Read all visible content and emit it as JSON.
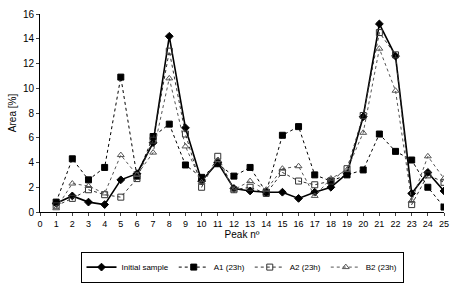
{
  "chart_data": {
    "type": "line",
    "x_label": "Peak nº",
    "y_label": "Area [%]",
    "x": [
      1,
      2,
      3,
      4,
      5,
      6,
      7,
      8,
      9,
      10,
      11,
      12,
      13,
      14,
      15,
      16,
      17,
      18,
      19,
      20,
      21,
      22,
      23,
      24,
      25
    ],
    "xlim": [
      0,
      25
    ],
    "xticks": [
      0,
      1,
      2,
      3,
      4,
      5,
      6,
      7,
      8,
      9,
      10,
      11,
      12,
      13,
      14,
      15,
      16,
      17,
      18,
      19,
      20,
      21,
      22,
      23,
      24,
      25
    ],
    "ylim": [
      0,
      16
    ],
    "yticks": [
      0,
      2,
      4,
      6,
      8,
      10,
      12,
      14,
      16
    ],
    "grid": false,
    "legend": "bottom",
    "series": [
      {
        "name": "Initial sample",
        "color": "#000000",
        "marker": "diamond",
        "line_style": "solid",
        "values": [
          0.7,
          1.3,
          0.8,
          0.6,
          2.6,
          3.1,
          5.6,
          14.2,
          6.8,
          2.5,
          4.0,
          1.9,
          1.7,
          1.6,
          1.6,
          1.1,
          1.6,
          2.0,
          3.1,
          7.7,
          15.2,
          12.6,
          1.5,
          3.2,
          1.7
        ]
      },
      {
        "name": "A1 (23h)",
        "color": "#000000",
        "marker": "square",
        "line_style": "dot",
        "values": [
          0.8,
          4.3,
          2.6,
          3.6,
          10.9,
          2.9,
          6.1,
          7.1,
          3.8,
          2.8,
          3.9,
          2.9,
          3.6,
          1.6,
          6.2,
          6.9,
          3.0,
          2.5,
          3.0,
          3.4,
          6.3,
          4.9,
          4.2,
          2.0,
          0.4
        ]
      },
      {
        "name": "A2 (23h)",
        "color": "#333333",
        "marker": "square-open",
        "line_style": "dot",
        "values": [
          0.5,
          1.1,
          1.8,
          1.4,
          1.2,
          2.7,
          5.8,
          13.0,
          6.3,
          2.0,
          4.5,
          1.8,
          2.0,
          1.5,
          3.2,
          2.5,
          2.2,
          2.5,
          3.5,
          7.8,
          14.5,
          12.7,
          0.6,
          3.0,
          2.4
        ]
      },
      {
        "name": "B2 (23h)",
        "color": "#555555",
        "marker": "triangle-up-open",
        "line_style": "dot",
        "values": [
          0.3,
          2.3,
          2.1,
          1.5,
          4.6,
          3.0,
          4.8,
          10.8,
          5.3,
          2.4,
          4.2,
          1.8,
          2.5,
          1.8,
          3.5,
          3.7,
          1.3,
          2.7,
          3.4,
          6.4,
          13.2,
          9.8,
          0.9,
          4.5,
          2.7
        ]
      }
    ]
  }
}
